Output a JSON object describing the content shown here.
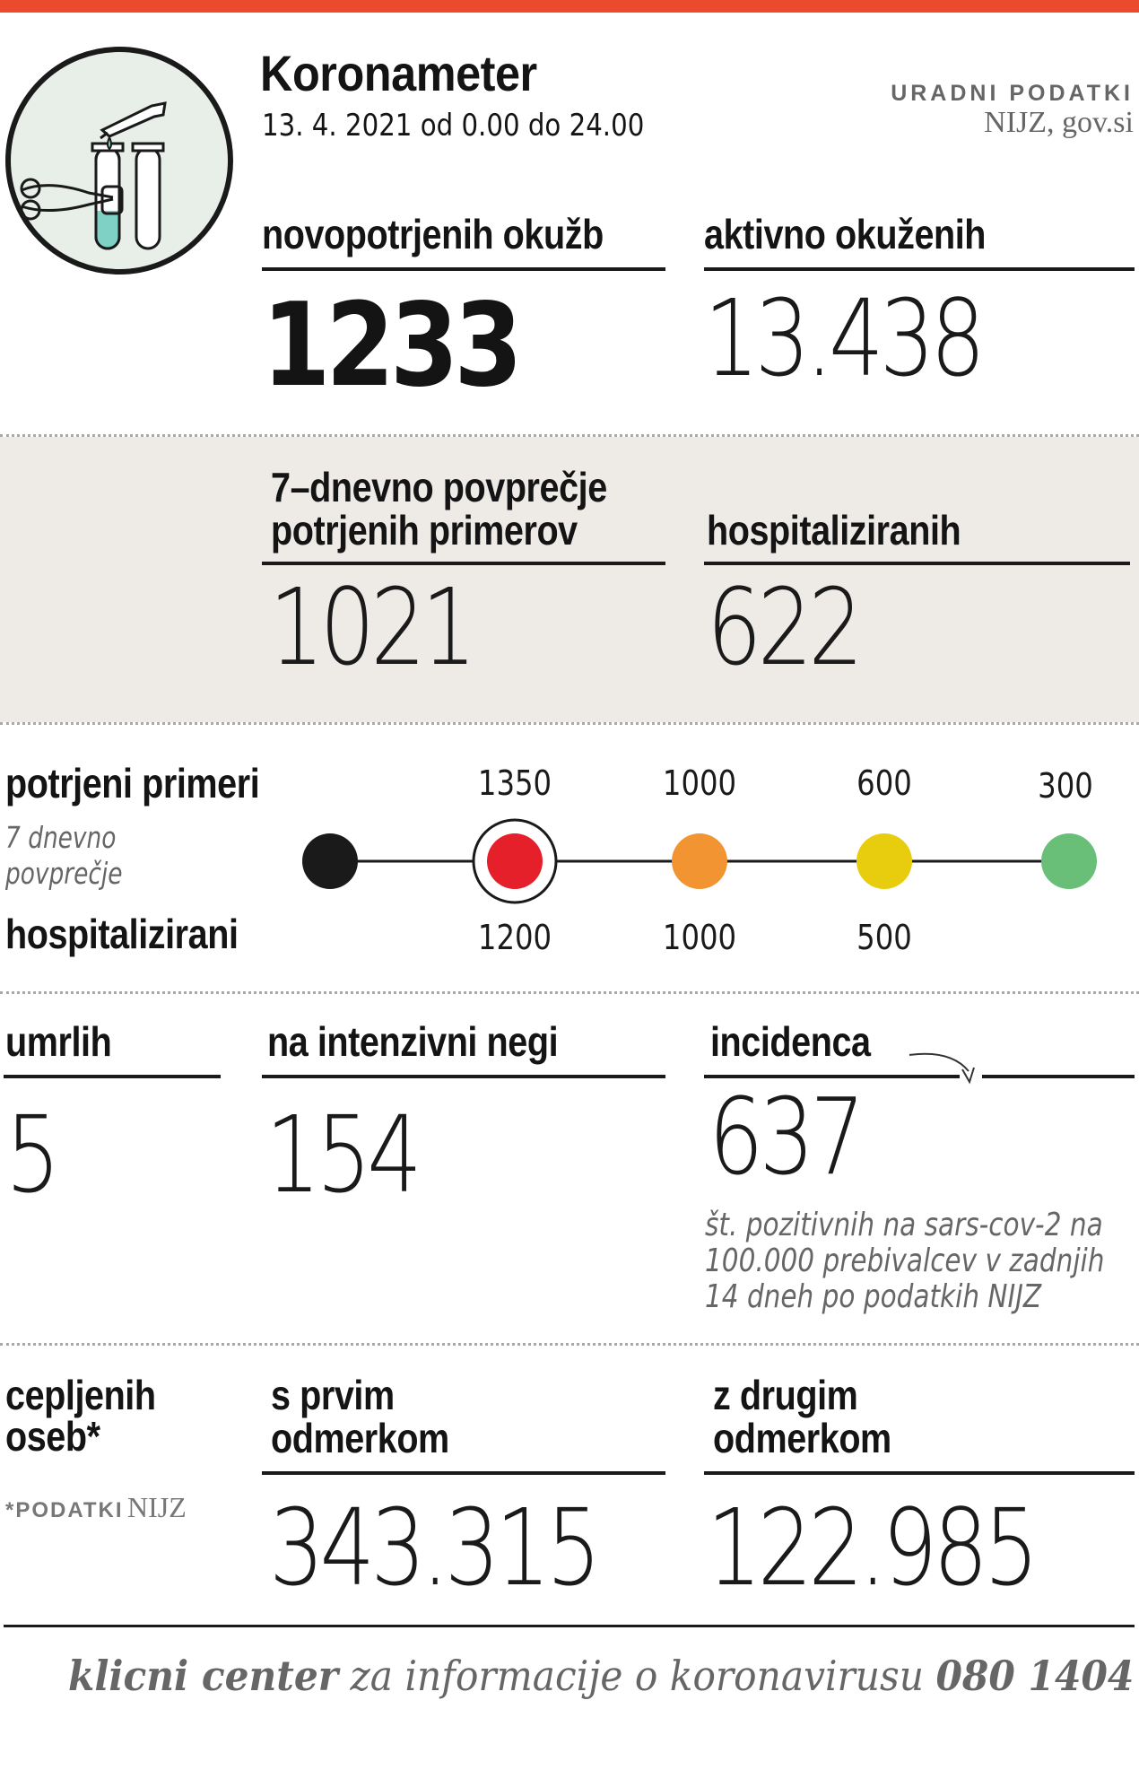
{
  "header": {
    "title": "Koronameter",
    "date": "13. 4. 2021 od 0.00 do 24.00",
    "source_label": "URADNI PODATKI",
    "source_name": "NIJZ, gov.si"
  },
  "icon": "test-tubes-icon",
  "stats_top": [
    {
      "label": "novopotrjenih okužb",
      "value": "1233"
    },
    {
      "label": "aktivno okuženih",
      "value": "13.438"
    }
  ],
  "stats_gray": [
    {
      "label_line1": "7–dnevno povprečje",
      "label_line2": "potrjenih primerov",
      "value": "1021"
    },
    {
      "label": "hospitaliziranih",
      "value": "622"
    }
  ],
  "scale": {
    "top_label": "potrjeni primeri",
    "mid_label_line1": "7 dnevno",
    "mid_label_line2": "povprečje",
    "bottom_label": "hospitalizirani",
    "top_values": [
      "1350",
      "1000",
      "600",
      "300"
    ],
    "bottom_values": [
      "1200",
      "1000",
      "500"
    ],
    "dot_colors": [
      "#1a1a1a",
      "#e5202a",
      "#f39433",
      "#e8cd0e",
      "#6abf78"
    ],
    "active_index": 1
  },
  "stats_mid": [
    {
      "label": "umrlih",
      "value": "5"
    },
    {
      "label": "na intenzivni negi",
      "value": "154"
    },
    {
      "label": "incidenca",
      "value": "637",
      "note_line1": "št. pozitivnih na sars-cov-2 na",
      "note_line2": "100.000 prebivalcev v zadnjih",
      "note_line3": "14 dneh po podatkih NIJZ"
    }
  ],
  "vaccination": {
    "label_line1": "cepljenih",
    "label_line2": "oseb*",
    "footnote_caps": "*PODATKI",
    "footnote_src": "NIJZ",
    "first": {
      "label_line1": "s prvim",
      "label_line2": "odmerkom",
      "value": "343.315"
    },
    "second": {
      "label_line1": "z drugim",
      "label_line2": "odmerkom",
      "value": "122.985"
    }
  },
  "footer": {
    "bold1": "klicni center",
    "text": " za informacije o koronavirusu ",
    "bold2": "080 1404"
  }
}
